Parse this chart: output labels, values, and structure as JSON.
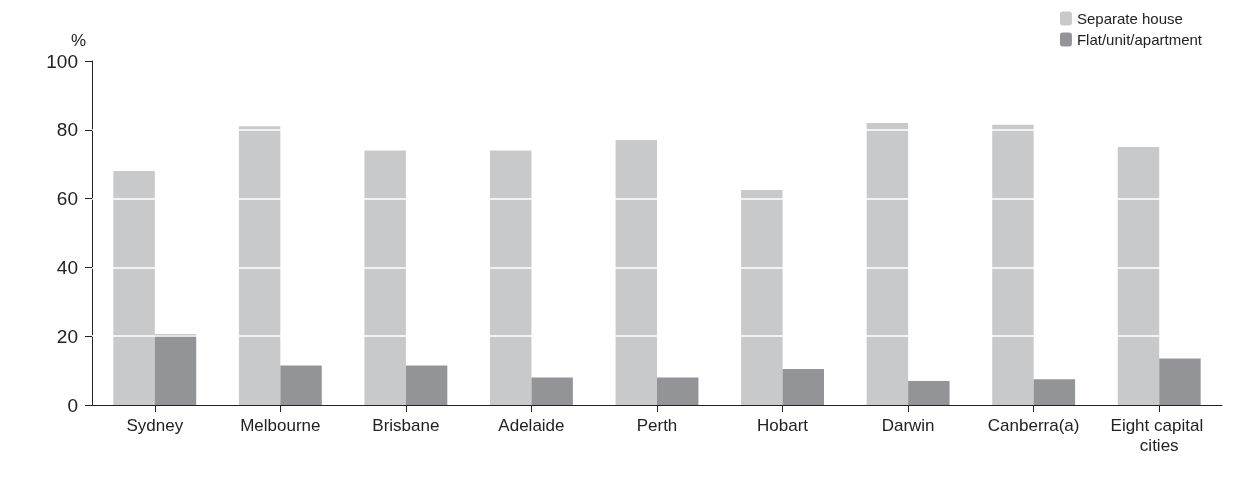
{
  "chart_data": {
    "type": "bar",
    "ylabel": "%",
    "categories": [
      "Sydney",
      "Melbourne",
      "Brisbane",
      "Adelaide",
      "Perth",
      "Hobart",
      "Darwin",
      "Canberra(a)",
      "Eight capital cities"
    ],
    "series": [
      {
        "name": "Separate house",
        "color": "#c8c9cb",
        "values": [
          68,
          81,
          74,
          74,
          77,
          62.5,
          82,
          81.5,
          75
        ]
      },
      {
        "name": "Flat/unit/apartment",
        "color": "#939497",
        "values": [
          20.5,
          11.5,
          11.5,
          8,
          8,
          10.5,
          7,
          7.5,
          13.5
        ]
      }
    ],
    "ylim": [
      0,
      100
    ],
    "yticks": [
      0,
      20,
      40,
      60,
      80,
      100
    ],
    "grid": "y",
    "legend": "top right"
  }
}
